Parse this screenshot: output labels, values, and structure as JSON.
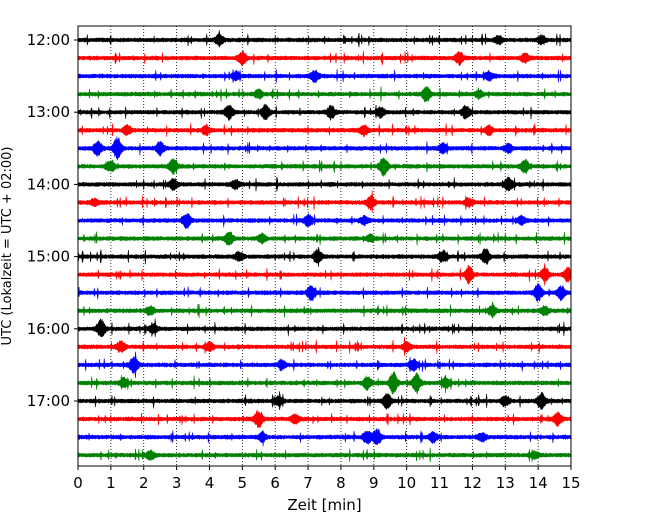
{
  "chart_data": {
    "type": "line",
    "title": "",
    "xlabel": "Zeit  [min]",
    "ylabel": "UTC (Lokalzeit = UTC + 02:00)",
    "xlim": [
      0,
      15
    ],
    "x_ticks": [
      "0",
      "1",
      "2",
      "3",
      "4",
      "5",
      "6",
      "7",
      "8",
      "9",
      "10",
      "11",
      "12",
      "13",
      "14",
      "15"
    ],
    "grid": "vertical dotted lines at each minute",
    "y_ticks": [
      {
        "label": "12:00",
        "row": 0
      },
      {
        "label": "13:00",
        "row": 4
      },
      {
        "label": "14:00",
        "row": 8
      },
      {
        "label": "15:00",
        "row": 12
      },
      {
        "label": "16:00",
        "row": 16
      },
      {
        "label": "17:00",
        "row": 20
      }
    ],
    "row_interval_minutes": 15,
    "trace_colors": [
      "#000000",
      "#ff0000",
      "#0000ff",
      "#008000"
    ],
    "series": [
      {
        "start": "12:00",
        "events": [
          [
            4.3,
            5
          ],
          [
            12.8,
            4
          ],
          [
            14.1,
            4
          ]
        ]
      },
      {
        "start": "12:15",
        "events": [
          [
            5.0,
            6
          ],
          [
            11.6,
            6
          ],
          [
            13.6,
            4
          ]
        ]
      },
      {
        "start": "12:30",
        "events": [
          [
            4.8,
            4
          ],
          [
            7.2,
            5
          ],
          [
            12.5,
            4
          ]
        ]
      },
      {
        "start": "12:45",
        "events": [
          [
            5.5,
            4
          ],
          [
            10.6,
            7
          ],
          [
            12.2,
            3
          ]
        ]
      },
      {
        "start": "13:00",
        "events": [
          [
            4.6,
            7
          ],
          [
            5.7,
            7
          ],
          [
            7.7,
            6
          ],
          [
            9.2,
            5
          ],
          [
            11.8,
            6
          ]
        ]
      },
      {
        "start": "13:15",
        "events": [
          [
            1.5,
            4
          ],
          [
            3.9,
            4
          ],
          [
            8.7,
            5
          ],
          [
            12.5,
            4
          ]
        ]
      },
      {
        "start": "13:30",
        "events": [
          [
            0.6,
            7
          ],
          [
            1.2,
            10
          ],
          [
            2.5,
            6
          ],
          [
            11.1,
            5
          ],
          [
            13.1,
            4
          ]
        ]
      },
      {
        "start": "13:45",
        "events": [
          [
            1.0,
            5
          ],
          [
            2.9,
            7
          ],
          [
            9.3,
            9
          ],
          [
            13.6,
            6
          ]
        ]
      },
      {
        "start": "14:00",
        "events": [
          [
            2.9,
            5
          ],
          [
            4.8,
            4
          ],
          [
            13.1,
            6
          ]
        ]
      },
      {
        "start": "14:15",
        "events": [
          [
            0.5,
            3
          ],
          [
            8.9,
            6
          ],
          [
            11.9,
            4
          ]
        ]
      },
      {
        "start": "14:30",
        "events": [
          [
            3.3,
            7
          ],
          [
            7.0,
            5
          ],
          [
            8.7,
            4
          ],
          [
            13.5,
            4
          ]
        ]
      },
      {
        "start": "14:45",
        "events": [
          [
            4.6,
            6
          ],
          [
            5.6,
            4
          ],
          [
            8.9,
            3
          ]
        ]
      },
      {
        "start": "15:00",
        "events": [
          [
            4.9,
            4
          ],
          [
            7.3,
            6
          ],
          [
            11.1,
            5
          ],
          [
            12.4,
            7
          ]
        ]
      },
      {
        "start": "15:15",
        "events": [
          [
            11.9,
            8
          ],
          [
            14.2,
            7
          ],
          [
            14.9,
            6
          ]
        ]
      },
      {
        "start": "15:30",
        "events": [
          [
            7.1,
            7
          ],
          [
            14.0,
            8
          ],
          [
            14.7,
            6
          ]
        ]
      },
      {
        "start": "15:45",
        "events": [
          [
            2.2,
            4
          ],
          [
            12.6,
            5
          ],
          [
            14.2,
            4
          ]
        ]
      },
      {
        "start": "16:00",
        "events": [
          [
            0.7,
            8
          ],
          [
            2.3,
            4
          ]
        ]
      },
      {
        "start": "16:15",
        "events": [
          [
            1.3,
            5
          ],
          [
            4.0,
            4
          ],
          [
            10.0,
            4
          ]
        ]
      },
      {
        "start": "16:30",
        "events": [
          [
            1.7,
            8
          ],
          [
            6.2,
            4
          ],
          [
            10.2,
            5
          ]
        ]
      },
      {
        "start": "16:45",
        "events": [
          [
            1.4,
            4
          ],
          [
            8.8,
            6
          ],
          [
            9.6,
            10
          ],
          [
            10.3,
            9
          ],
          [
            11.2,
            5
          ]
        ]
      },
      {
        "start": "17:00",
        "events": [
          [
            6.1,
            4
          ],
          [
            9.4,
            7
          ],
          [
            13.0,
            5
          ],
          [
            14.1,
            7
          ]
        ]
      },
      {
        "start": "17:15",
        "events": [
          [
            5.5,
            8
          ],
          [
            6.6,
            4
          ],
          [
            14.6,
            6
          ]
        ]
      },
      {
        "start": "17:30",
        "events": [
          [
            5.6,
            4
          ],
          [
            8.8,
            6
          ],
          [
            9.1,
            7
          ],
          [
            10.8,
            5
          ],
          [
            12.3,
            4
          ]
        ]
      },
      {
        "start": "17:45",
        "events": [
          [
            2.2,
            4
          ],
          [
            13.9,
            3
          ]
        ]
      }
    ]
  }
}
